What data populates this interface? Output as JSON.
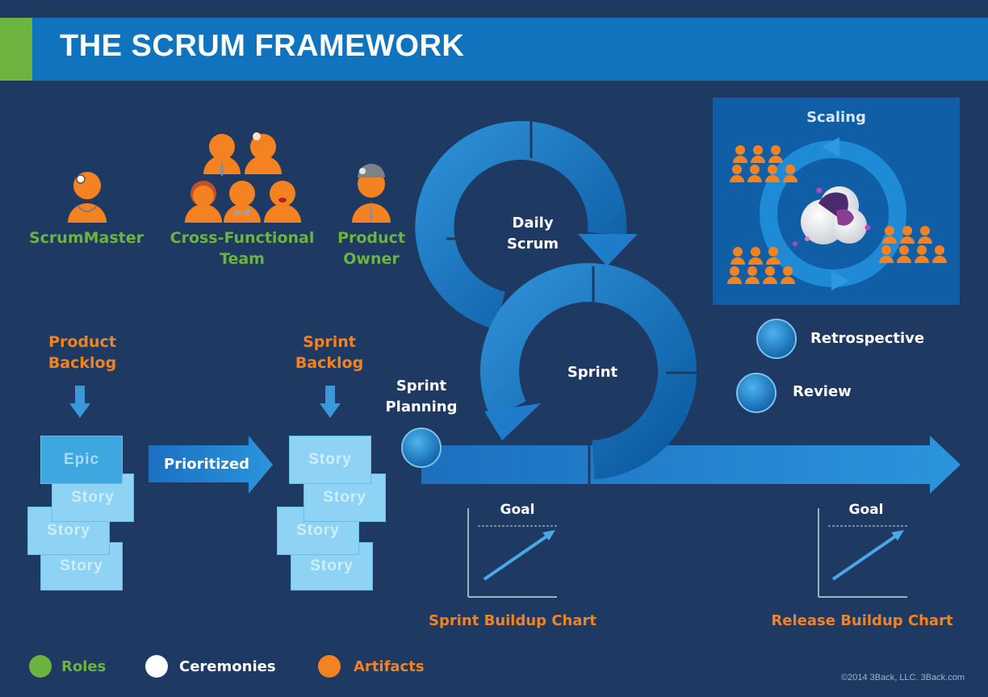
{
  "title": "THE SCRUM FRAMEWORK",
  "roles": {
    "scrum_master": "ScrumMaster",
    "team_line1": "Cross-Functional",
    "team_line2": "Team",
    "owner_line1": "Product",
    "owner_line2": "Owner"
  },
  "product_backlog": {
    "line1": "Product",
    "line2": "Backlog",
    "cards": [
      "Epic",
      "Story",
      "Story",
      "Story"
    ]
  },
  "prioritized": "Prioritized",
  "sprint_backlog": {
    "line1": "Sprint",
    "line2": "Backlog",
    "cards": [
      "Story",
      "Story",
      "Story",
      "Story"
    ]
  },
  "ceremonies": {
    "daily_line1": "Daily",
    "daily_line2": "Scrum",
    "sprint": "Sprint",
    "planning_line1": "Sprint",
    "planning_line2": "Planning",
    "retrospective": "Retrospective",
    "review": "Review",
    "scaling": "Scaling"
  },
  "charts": {
    "sprint_goal": "Goal",
    "sprint_chart_label": "Sprint Buildup Chart",
    "release_goal": "Goal",
    "release_chart_label": "Release Buildup Chart"
  },
  "legend": {
    "roles": "Roles",
    "ceremonies": "Ceremonies",
    "artifacts": "Artifacts"
  },
  "colors": {
    "roles": "#6cb33f",
    "ceremonies": "#ffffff",
    "artifacts": "#f58220",
    "header": "#0f73bd",
    "background": "#1e3a63"
  },
  "copyright": "©2014 3Back, LLC. 3Back.com"
}
